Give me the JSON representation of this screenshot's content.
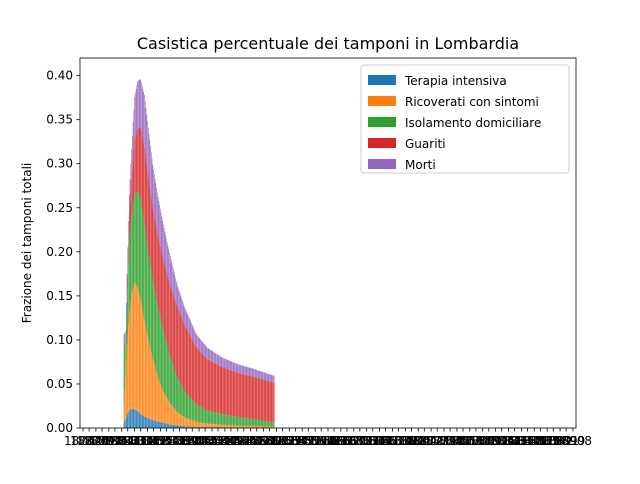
{
  "chart_data": {
    "type": "bar",
    "stacked": true,
    "title": "Casistica percentuale dei tamponi in Lombardia",
    "xlabel": "",
    "ylabel": "Frazione dei tamponi totali",
    "ylim": [
      0,
      0.42
    ],
    "yticks": [
      0.0,
      0.05,
      0.1,
      0.15,
      0.2,
      0.25,
      0.3,
      0.35,
      0.4
    ],
    "ytick_labels": [
      "0.00",
      "0.05",
      "0.10",
      "0.15",
      "0.20",
      "0.25",
      "0.30",
      "0.35",
      "0.40"
    ],
    "xtick_labels": [
      "18262",
      "18270",
      "18279",
      "18287",
      "18296",
      "18304",
      "18313",
      "18321",
      "18330",
      "18338",
      "18347",
      "18355",
      "18364",
      "18372",
      "18381",
      "18389",
      "18398",
      "18406",
      "18415",
      "18423",
      "18432",
      "18440",
      "18449",
      "18457",
      "18466",
      "18474",
      "18483",
      "18491",
      "18500",
      "18508",
      "18517",
      "18525",
      "18534",
      "18542",
      "18551",
      "18559",
      "18568",
      "18576",
      "18585",
      "18593",
      "18602",
      "18610",
      "18619",
      "18627",
      "18636",
      "18644",
      "18653",
      "18661",
      "18670",
      "18678",
      "18687",
      "18695",
      "18704",
      "18712",
      "18721",
      "18729",
      "18738",
      "18746",
      "18755",
      "18763",
      "18772",
      "18780",
      "18789",
      "18797",
      "18806",
      "18814",
      "18823",
      "18831",
      "18840",
      "18848",
      "18857",
      "18865",
      "18874",
      "18882",
      "18891",
      "18899",
      "18908"
    ],
    "legend_position": "top-right",
    "grid": false,
    "x_start": 18316,
    "n_days": 199,
    "series": [
      {
        "name": "Terapia intensiva",
        "color": "#1f77b4"
      },
      {
        "name": "Ricoverati con sintomi",
        "color": "#ff7f0e"
      },
      {
        "name": "Isolamento domiciliare",
        "color": "#2ca02c"
      },
      {
        "name": "Guariti",
        "color": "#d62728"
      },
      {
        "name": "Morti",
        "color": "#9467bd"
      }
    ],
    "keyframes": {
      "day": [
        0,
        2,
        4,
        7,
        10,
        14,
        18,
        22,
        27,
        32,
        38,
        45,
        52,
        60,
        70,
        80,
        95,
        110,
        130,
        150,
        170,
        198
      ],
      "ti": [
        0.006,
        0.01,
        0.015,
        0.02,
        0.022,
        0.021,
        0.019,
        0.016,
        0.013,
        0.011,
        0.009,
        0.007,
        0.006,
        0.004,
        0.003,
        0.002,
        0.001,
        0.001,
        0.0008,
        0.0005,
        0.0004,
        0.0003
      ],
      "ric": [
        0.02,
        0.05,
        0.08,
        0.11,
        0.13,
        0.145,
        0.14,
        0.13,
        0.11,
        0.09,
        0.07,
        0.05,
        0.035,
        0.025,
        0.015,
        0.01,
        0.006,
        0.004,
        0.003,
        0.002,
        0.002,
        0.001
      ],
      "iso": [
        0.07,
        0.03,
        0.04,
        0.08,
        0.09,
        0.1,
        0.11,
        0.115,
        0.11,
        0.1,
        0.09,
        0.08,
        0.07,
        0.055,
        0.04,
        0.03,
        0.02,
        0.015,
        0.012,
        0.01,
        0.008,
        0.005
      ],
      "gua": [
        0.0,
        0.0,
        0.0,
        0.035,
        0.04,
        0.06,
        0.07,
        0.08,
        0.085,
        0.085,
        0.08,
        0.08,
        0.08,
        0.08,
        0.08,
        0.075,
        0.065,
        0.058,
        0.053,
        0.05,
        0.048,
        0.045
      ],
      "morti": [
        0.01,
        0.02,
        0.04,
        0.02,
        0.035,
        0.05,
        0.055,
        0.055,
        0.06,
        0.055,
        0.05,
        0.045,
        0.04,
        0.035,
        0.025,
        0.02,
        0.015,
        0.013,
        0.011,
        0.01,
        0.009,
        0.008
      ]
    }
  }
}
